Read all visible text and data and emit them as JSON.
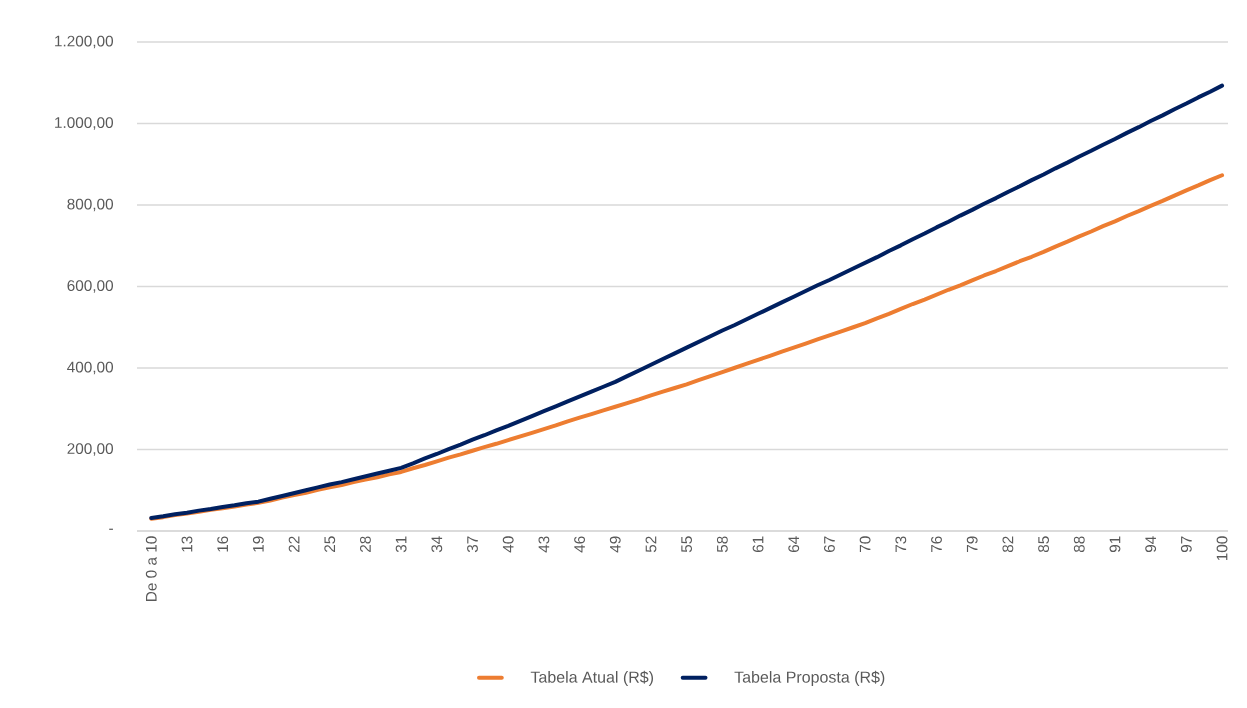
{
  "chart_data": {
    "type": "line",
    "categories": [
      "De 0 a 10",
      null,
      null,
      "13",
      null,
      null,
      "16",
      null,
      null,
      "19",
      null,
      null,
      "22",
      null,
      null,
      "25",
      null,
      null,
      "28",
      null,
      null,
      "31",
      null,
      null,
      "34",
      null,
      null,
      "37",
      null,
      null,
      "40",
      null,
      null,
      "43",
      null,
      null,
      "46",
      null,
      null,
      "49",
      null,
      null,
      "52",
      null,
      null,
      "55",
      null,
      null,
      "58",
      null,
      null,
      "61",
      null,
      null,
      "64",
      null,
      null,
      "67",
      null,
      null,
      "70",
      null,
      null,
      "73",
      null,
      null,
      "76",
      null,
      null,
      "79",
      null,
      null,
      "82",
      null,
      null,
      "85",
      null,
      null,
      "88",
      null,
      null,
      "91",
      null,
      null,
      "94",
      null,
      null,
      "97",
      null,
      null,
      "100"
    ],
    "series": [
      {
        "name": "Tabela Atual (R$)",
        "color": "#ed7d31",
        "values": [
          30,
          34,
          39,
          43,
          47,
          52,
          56,
          60,
          65,
          69,
          75,
          82,
          88,
          94,
          101,
          107,
          113,
          120,
          126,
          132,
          139,
          145,
          154,
          162,
          171,
          180,
          188,
          197,
          206,
          214,
          223,
          232,
          241,
          250,
          259,
          269,
          278,
          287,
          296,
          305,
          314,
          323,
          333,
          342,
          351,
          360,
          370,
          380,
          390,
          400,
          410,
          420,
          430,
          440,
          450,
          460,
          470,
          480,
          490,
          500,
          510,
          522,
          533,
          545,
          557,
          568,
          580,
          592,
          603,
          615,
          627,
          638,
          650,
          662,
          673,
          685,
          698,
          710,
          723,
          735,
          748,
          760,
          773,
          785,
          798,
          810,
          823,
          836,
          848,
          861,
          873
        ]
      },
      {
        "name": "Tabela Proposta (R$)",
        "color": "#002060",
        "values": [
          32,
          36,
          41,
          45,
          50,
          54,
          59,
          63,
          68,
          72,
          79,
          86,
          93,
          100,
          107,
          114,
          120,
          127,
          134,
          141,
          148,
          155,
          166,
          178,
          189,
          201,
          212,
          224,
          235,
          247,
          258,
          270,
          282,
          294,
          306,
          318,
          330,
          342,
          354,
          366,
          380,
          394,
          408,
          422,
          436,
          450,
          464,
          478,
          492,
          505,
          519,
          533,
          547,
          561,
          575,
          589,
          603,
          616,
          630,
          644,
          658,
          672,
          687,
          701,
          716,
          730,
          745,
          759,
          774,
          788,
          803,
          817,
          832,
          846,
          861,
          875,
          890,
          904,
          919,
          933,
          948,
          962,
          977,
          991,
          1006,
          1020,
          1035,
          1049,
          1064,
          1078,
          1093
        ]
      }
    ],
    "ylim": [
      0,
      1200
    ],
    "yticks": [
      {
        "value": 0,
        "label": "-"
      },
      {
        "value": 200,
        "label": "200,00"
      },
      {
        "value": 400,
        "label": "400,00"
      },
      {
        "value": 600,
        "label": "600,00"
      },
      {
        "value": 800,
        "label": "800,00"
      },
      {
        "value": 1000,
        "label": "1.000,00"
      },
      {
        "value": 1200,
        "label": "1.200,00"
      }
    ],
    "grid": "y",
    "legend": "bottom"
  }
}
